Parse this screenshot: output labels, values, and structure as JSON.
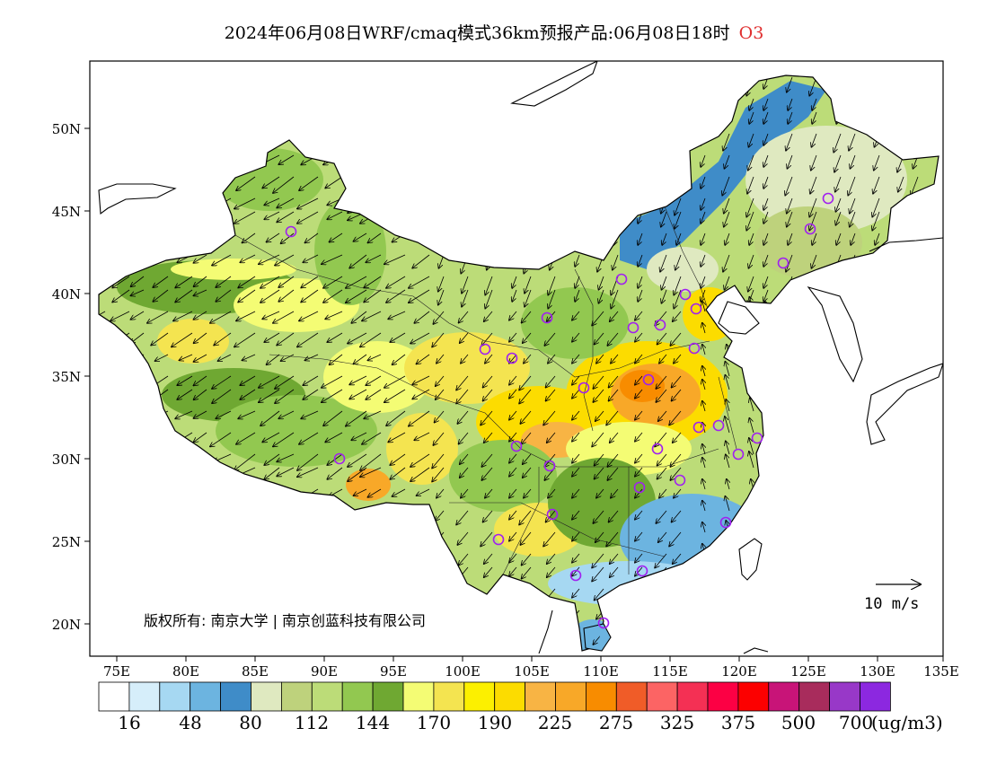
{
  "title": {
    "text": "2024年06月08日WRF/cmaq模式36km预报产品:06月08日18时",
    "species": "O3"
  },
  "axes": {
    "lon_ticks": [
      "75E",
      "80E",
      "85E",
      "90E",
      "95E",
      "100E",
      "105E",
      "110E",
      "115E",
      "120E",
      "125E",
      "130E",
      "135E"
    ],
    "lat_ticks": [
      "50N",
      "45N",
      "40N",
      "35N",
      "30N",
      "25N",
      "20N"
    ]
  },
  "copyright": "版权所有: 南京大学 | 南京创蓝科技有限公司",
  "wind_reference": "10 m/s",
  "legend": {
    "colors": [
      "#ffffff",
      "#d6eefa",
      "#a6d8f2",
      "#6cb4e0",
      "#3f8cc8",
      "#dfe9c0",
      "#bed27c",
      "#bcdc78",
      "#92c850",
      "#6fa832",
      "#f4fc74",
      "#f4e450",
      "#fcf000",
      "#fcdc00",
      "#f8b444",
      "#f8a828",
      "#f88c00",
      "#f05c28",
      "#fc6464",
      "#f43054",
      "#fc0044",
      "#fc0000",
      "#c81478",
      "#a82c5c",
      "#9838c8",
      "#8c28e0"
    ],
    "labels": [
      "16",
      "48",
      "80",
      "112",
      "144",
      "170",
      "190",
      "225",
      "275",
      "325",
      "375",
      "500",
      "700"
    ],
    "unit": "(ug/m3)"
  }
}
